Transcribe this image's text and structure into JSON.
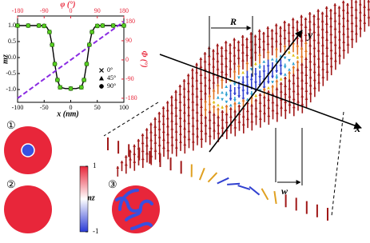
{
  "chart_data": {
    "type": "line",
    "x_label": "x (nm)",
    "y_label": "mz",
    "x2_label": "φ (°)",
    "y2_label": "Φ (°)",
    "xlim": [
      -100,
      100
    ],
    "xticks": [
      -100,
      -50,
      0,
      50,
      100
    ],
    "ylim": [
      -1.4,
      1.3
    ],
    "yticks": [
      {
        "value": 1,
        "label": "1.0"
      },
      {
        "value": 0.5,
        "label": "0.5"
      },
      {
        "value": 0,
        "label": "0.0"
      },
      {
        "value": -0.5,
        "label": "-0.5"
      },
      {
        "value": -1,
        "label": "-1.0"
      }
    ],
    "x2lim": [
      -180,
      180
    ],
    "x2ticks": [
      -180,
      -90,
      0,
      90,
      180
    ],
    "y2lim": [
      -199,
      206
    ],
    "y2ticks": [
      180,
      90,
      0,
      -90,
      -180
    ],
    "series": [
      {
        "color": "#000000",
        "x": [
          -100,
          -90,
          -80,
          -70,
          -60,
          -50,
          -45,
          -40,
          -35,
          -30,
          -25,
          -20,
          -10,
          0,
          10,
          20,
          25,
          30,
          35,
          40,
          45,
          50,
          60,
          70,
          80,
          90,
          100
        ],
        "values": [
          1,
          1,
          1,
          1,
          1,
          0.99,
          0.95,
          0.8,
          0.4,
          -0.2,
          -0.7,
          -0.93,
          -0.97,
          -0.97,
          -0.97,
          -0.93,
          -0.7,
          -0.2,
          0.4,
          0.8,
          0.95,
          0.99,
          1,
          1,
          1,
          1,
          1
        ]
      },
      {
        "color": "#8a2be2",
        "axis": "y2",
        "dashed": true,
        "x": [
          -100,
          100
        ],
        "values": [
          -180,
          180
        ]
      },
      {
        "name": "0°",
        "marker": "x",
        "color": "#55d01e",
        "x": [
          -100,
          -80,
          -60,
          -50,
          -40,
          -35,
          -30,
          -25,
          -20,
          0,
          20,
          25,
          30,
          35,
          40,
          50,
          60,
          80,
          100
        ],
        "values": [
          1,
          1,
          1,
          0.99,
          0.8,
          0.4,
          -0.2,
          -0.7,
          -0.93,
          -0.97,
          -0.93,
          -0.7,
          -0.2,
          0.4,
          0.8,
          0.99,
          1,
          1,
          1
        ]
      },
      {
        "name": "45°",
        "marker": "triangle",
        "color": "#55d01e",
        "x": [
          -100,
          -80,
          -60,
          -50,
          -40,
          -35,
          -30,
          -25,
          -20,
          0,
          20,
          25,
          30,
          35,
          40,
          50,
          60,
          80,
          100
        ],
        "values": [
          1,
          1,
          1,
          0.99,
          0.8,
          0.4,
          -0.2,
          -0.7,
          -0.93,
          -0.97,
          -0.93,
          -0.7,
          -0.2,
          0.4,
          0.8,
          0.99,
          1,
          1,
          1
        ]
      },
      {
        "name": "90°",
        "marker": "circle",
        "color": "#55d01e",
        "x": [
          -100,
          -80,
          -60,
          -50,
          -40,
          -35,
          -30,
          -25,
          -20,
          0,
          20,
          25,
          30,
          35,
          40,
          50,
          60,
          80,
          100
        ],
        "values": [
          1,
          1,
          1,
          0.99,
          0.8,
          0.4,
          -0.2,
          -0.7,
          -0.93,
          -0.97,
          -0.93,
          -0.7,
          -0.2,
          0.4,
          0.8,
          0.99,
          1,
          1,
          1
        ]
      }
    ]
  },
  "panels": [
    "①",
    "②",
    "③"
  ],
  "colorbar": {
    "label": "mz",
    "lim": [
      -1,
      1
    ],
    "ticks": [
      1,
      -1
    ]
  },
  "labels": {
    "radius": "R",
    "x_axis": "x",
    "y_axis": "y",
    "width": "w"
  }
}
